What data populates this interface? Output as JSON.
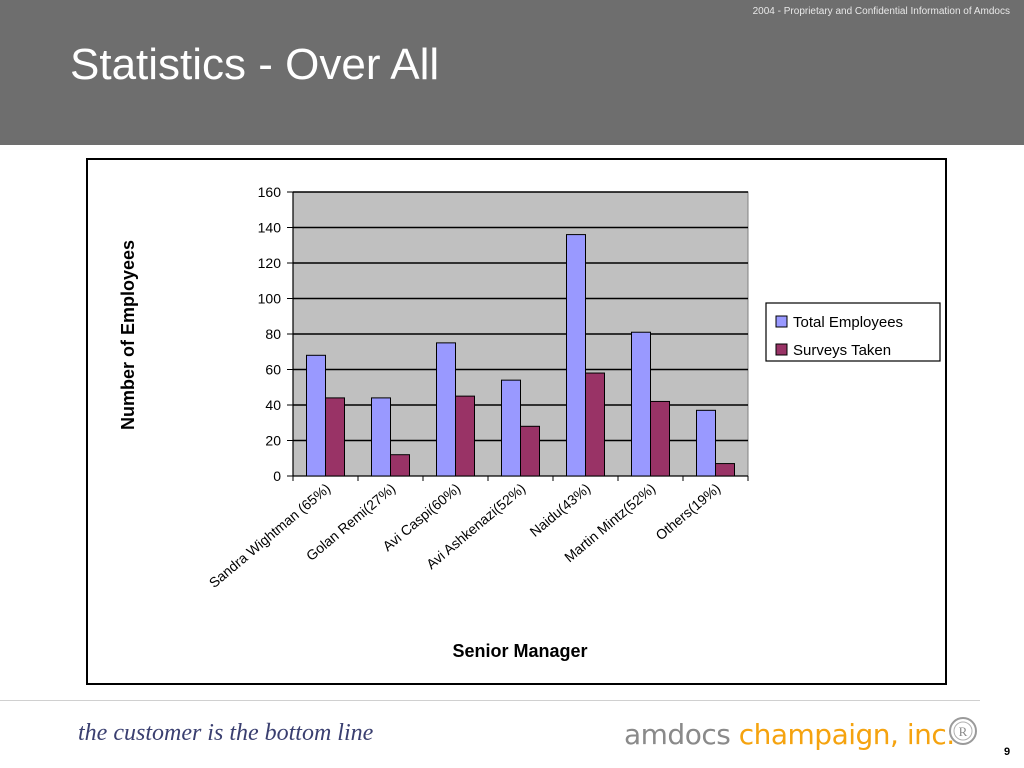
{
  "header": {
    "title": "Statistics - Over All",
    "confidential": "2004 - Proprietary and Confidential Information of Amdocs",
    "background": "#6e6e6e"
  },
  "footer": {
    "tagline": "the customer is the bottom line",
    "logo_part1": "amdocs",
    "logo_part2": "champaign, inc.",
    "logo_color1": "#8a8a8a",
    "logo_color2": "#f5a30f",
    "seal_letter": "R",
    "page_number": "9"
  },
  "chart_data": {
    "type": "bar",
    "title": "",
    "xlabel": "Senior Manager",
    "ylabel": "Number of Employees",
    "ylim": [
      0,
      160
    ],
    "yticks": [
      0,
      20,
      40,
      60,
      80,
      100,
      120,
      140,
      160
    ],
    "grid": true,
    "plot_background": "#c0c0c0",
    "legend_position": "right",
    "categories": [
      "Sandra Wightman (65%)",
      "Golan Remi(27%)",
      "Avi Caspi(60%)",
      "Avi Ashkenazi(52%)",
      "Naidu(43%)",
      "Martin Mintz(52%)",
      "Others(19%)"
    ],
    "series": [
      {
        "name": "Total Employees",
        "color": "#9999ff",
        "values": [
          68,
          44,
          75,
          54,
          136,
          81,
          37
        ]
      },
      {
        "name": "Surveys Taken",
        "color": "#993366",
        "values": [
          44,
          12,
          45,
          28,
          58,
          42,
          7
        ]
      }
    ]
  }
}
